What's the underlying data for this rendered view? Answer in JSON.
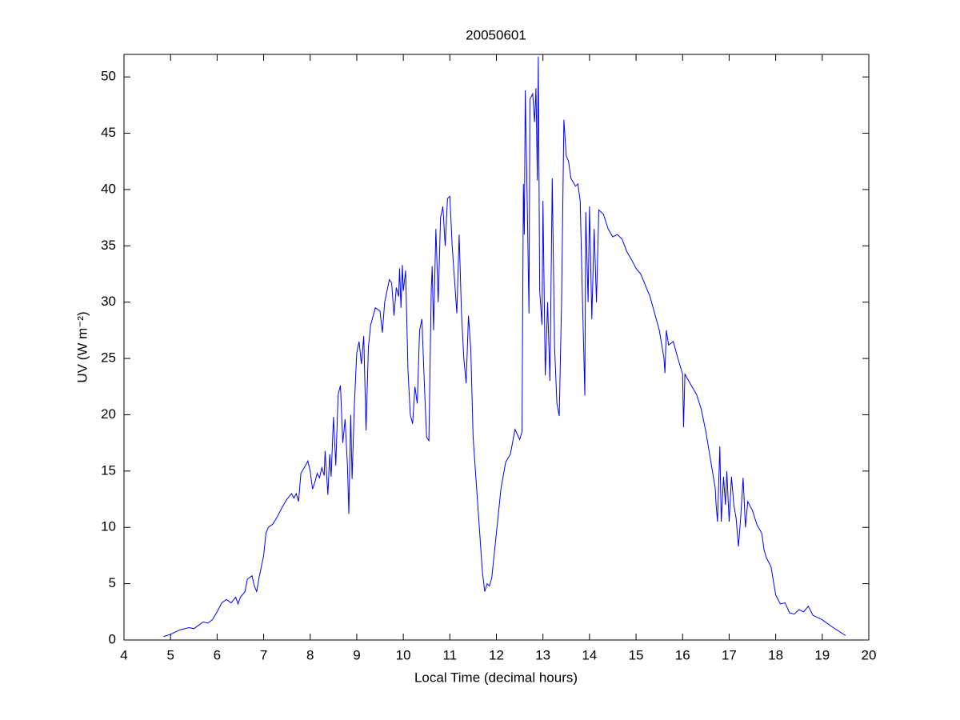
{
  "chart_data": {
    "type": "line",
    "title": "20050601",
    "xlabel": "Local Time (decimal hours)",
    "ylabel": "UV (W m⁻²)",
    "color": "#0000ff",
    "xlim": [
      4,
      20
    ],
    "ylim": [
      0,
      52
    ],
    "xticks": [
      4,
      5,
      6,
      7,
      8,
      9,
      10,
      11,
      12,
      13,
      14,
      15,
      16,
      17,
      18,
      19,
      20
    ],
    "yticks": [
      0,
      5,
      10,
      15,
      20,
      25,
      30,
      35,
      40,
      45,
      50
    ],
    "x": [
      4.85,
      5.0,
      5.2,
      5.4,
      5.5,
      5.6,
      5.7,
      5.8,
      5.9,
      6.0,
      6.1,
      6.2,
      6.3,
      6.4,
      6.45,
      6.5,
      6.6,
      6.65,
      6.75,
      6.8,
      6.85,
      6.9,
      7.0,
      7.05,
      7.1,
      7.2,
      7.3,
      7.4,
      7.5,
      7.6,
      7.65,
      7.7,
      7.75,
      7.8,
      7.9,
      7.95,
      8.0,
      8.05,
      8.1,
      8.15,
      8.2,
      8.25,
      8.3,
      8.32,
      8.38,
      8.42,
      8.45,
      8.5,
      8.55,
      8.6,
      8.65,
      8.7,
      8.75,
      8.8,
      8.83,
      8.87,
      8.9,
      8.95,
      9.0,
      9.05,
      9.1,
      9.15,
      9.2,
      9.25,
      9.3,
      9.4,
      9.5,
      9.55,
      9.6,
      9.7,
      9.75,
      9.8,
      9.85,
      9.9,
      9.92,
      9.95,
      9.98,
      10.0,
      10.05,
      10.1,
      10.15,
      10.2,
      10.25,
      10.3,
      10.35,
      10.4,
      10.45,
      10.5,
      10.55,
      10.6,
      10.62,
      10.65,
      10.7,
      10.75,
      10.8,
      10.85,
      10.9,
      10.95,
      11.0,
      11.05,
      11.1,
      11.15,
      11.2,
      11.25,
      11.3,
      11.35,
      11.4,
      11.45,
      11.5,
      11.6,
      11.7,
      11.75,
      11.8,
      11.85,
      11.9,
      12.0,
      12.1,
      12.2,
      12.3,
      12.4,
      12.5,
      12.55,
      12.58,
      12.6,
      12.62,
      12.65,
      12.7,
      12.72,
      12.78,
      12.82,
      12.85,
      12.88,
      12.9,
      12.93,
      12.98,
      13.0,
      13.05,
      13.1,
      13.15,
      13.2,
      13.25,
      13.3,
      13.35,
      13.4,
      13.45,
      13.5,
      13.55,
      13.6,
      13.7,
      13.75,
      13.8,
      13.85,
      13.9,
      13.92,
      13.97,
      14.0,
      14.05,
      14.1,
      14.15,
      14.2,
      14.3,
      14.4,
      14.5,
      14.6,
      14.7,
      14.8,
      14.9,
      15.0,
      15.1,
      15.2,
      15.3,
      15.4,
      15.5,
      15.6,
      15.62,
      15.65,
      15.7,
      15.8,
      15.9,
      16.0,
      16.02,
      16.05,
      16.2,
      16.3,
      16.4,
      16.5,
      16.6,
      16.7,
      16.72,
      16.75,
      16.8,
      16.83,
      16.88,
      16.92,
      16.95,
      17.0,
      17.05,
      17.1,
      17.15,
      17.2,
      17.25,
      17.3,
      17.35,
      17.4,
      17.5,
      17.6,
      17.7,
      17.75,
      17.8,
      17.9,
      18.0,
      18.1,
      18.2,
      18.3,
      18.4,
      18.5,
      18.6,
      18.7,
      18.8,
      19.0,
      19.2,
      19.5
    ],
    "values": [
      0.3,
      0.5,
      0.9,
      1.1,
      1.0,
      1.3,
      1.6,
      1.5,
      1.8,
      2.5,
      3.3,
      3.6,
      3.3,
      3.8,
      3.2,
      3.8,
      4.3,
      5.4,
      5.7,
      4.8,
      4.3,
      5.5,
      7.5,
      9.5,
      10.0,
      10.3,
      11.0,
      11.8,
      12.5,
      13.0,
      12.6,
      13.0,
      12.3,
      14.8,
      15.5,
      15.9,
      15.0,
      13.4,
      14.0,
      14.8,
      14.4,
      15.3,
      14.6,
      16.8,
      12.9,
      16.5,
      14.5,
      19.8,
      15.5,
      21.8,
      22.6,
      17.5,
      19.6,
      15.5,
      11.2,
      20.0,
      14.3,
      21.0,
      25.5,
      26.5,
      24.5,
      27.0,
      18.6,
      26.0,
      28.0,
      29.5,
      29.2,
      27.3,
      30.0,
      32.0,
      31.7,
      28.8,
      31.3,
      30.5,
      33.0,
      29.5,
      33.3,
      31.0,
      32.8,
      24.0,
      20.0,
      19.2,
      22.5,
      21.0,
      27.5,
      28.5,
      23.0,
      18.0,
      17.7,
      31.0,
      33.2,
      27.5,
      36.5,
      30.0,
      37.5,
      38.5,
      35.0,
      39.2,
      39.4,
      35.0,
      32.0,
      29.0,
      36.0,
      29.0,
      25.0,
      22.8,
      28.8,
      25.8,
      18.0,
      12.0,
      6.0,
      4.3,
      5.0,
      4.8,
      5.5,
      9.5,
      13.5,
      15.8,
      16.5,
      18.7,
      17.8,
      18.5,
      40.5,
      36.0,
      48.8,
      42.0,
      29.0,
      48.0,
      48.5,
      46.0,
      49.0,
      40.8,
      51.8,
      31.0,
      28.0,
      39.0,
      23.5,
      30.0,
      23.0,
      41.0,
      26.0,
      21.0,
      19.9,
      30.0,
      46.2,
      43.0,
      42.5,
      41.0,
      40.3,
      40.5,
      39.0,
      30.0,
      21.7,
      38.0,
      30.0,
      38.5,
      28.5,
      36.5,
      30.0,
      38.2,
      37.8,
      36.5,
      35.8,
      36.0,
      35.6,
      34.5,
      33.8,
      33.0,
      32.5,
      31.5,
      30.5,
      29.0,
      27.5,
      25.0,
      23.7,
      27.5,
      26.2,
      26.5,
      25.0,
      23.6,
      18.9,
      23.6,
      22.5,
      21.8,
      20.5,
      18.5,
      16.0,
      13.5,
      12.0,
      10.5,
      17.2,
      10.5,
      14.5,
      12.0,
      15.0,
      10.5,
      14.5,
      12.0,
      10.8,
      8.3,
      11.0,
      14.4,
      10.0,
      12.3,
      11.5,
      10.2,
      9.5,
      8.0,
      7.3,
      6.5,
      4.0,
      3.2,
      3.3,
      2.4,
      2.3,
      2.7,
      2.5,
      3.0,
      2.2,
      1.8,
      1.2,
      0.4
    ]
  }
}
